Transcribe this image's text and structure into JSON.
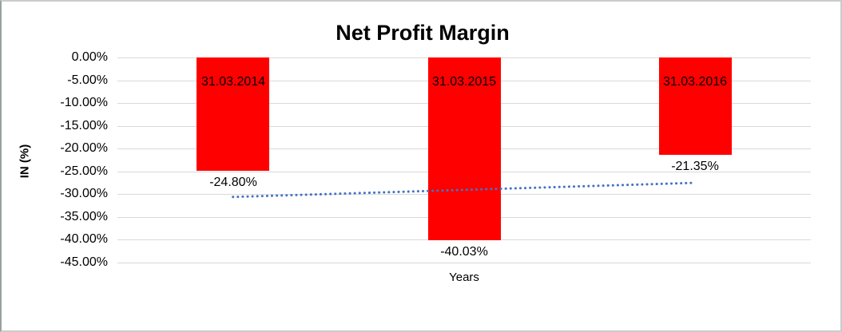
{
  "chart_data": {
    "type": "bar",
    "title": "Net Profit Margin",
    "xlabel": "Years",
    "ylabel": "IN (%)",
    "categories": [
      "31.03.2014",
      "31.03.2015",
      "31.03.2016"
    ],
    "series": [
      {
        "name": "Net Profit Margin",
        "values": [
          -24.8,
          -40.03,
          -21.35
        ],
        "data_labels": [
          "-24.80%",
          "-40.03%",
          "-21.35%"
        ]
      }
    ],
    "ylim": [
      0,
      -45
    ],
    "ytick_labels": [
      "0.00%",
      "-5.00%",
      "-10.00%",
      "-15.00%",
      "-20.00%",
      "-25.00%",
      "-30.00%",
      "-35.00%",
      "-40.00%",
      "-45.00%"
    ],
    "ytick_values": [
      0,
      -5,
      -10,
      -15,
      -20,
      -25,
      -30,
      -35,
      -40,
      -45
    ],
    "grid": "horizontal",
    "legend": "none",
    "colors": {
      "bar": "#ff0000",
      "gridline": "#d9d9d9",
      "trendline": "#4472c4",
      "text": "#000000",
      "background": "#ffffff"
    },
    "trendline": {
      "style": "dotted",
      "points": [
        {
          "category_index": 0,
          "value": -30.6
        },
        {
          "category_index": 2,
          "value": -27.5
        }
      ]
    }
  }
}
